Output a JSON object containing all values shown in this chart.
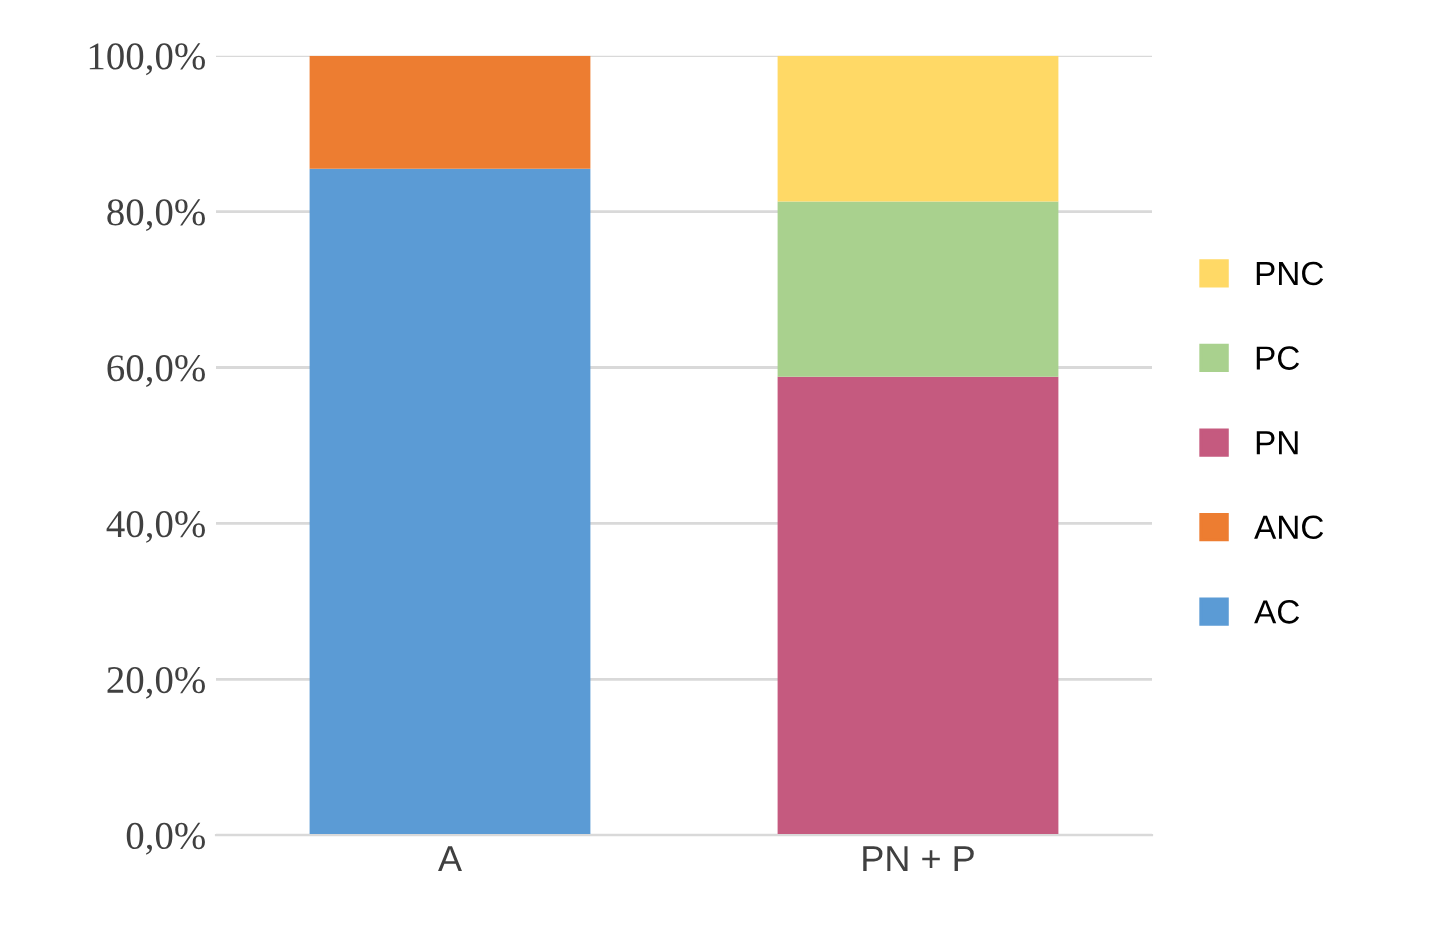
{
  "chart_data": {
    "type": "bar",
    "stacked": true,
    "categories": [
      "A",
      "PN + P"
    ],
    "series": [
      {
        "name": "AC",
        "color": "#5b9bd5",
        "values": [
          85.5,
          null
        ]
      },
      {
        "name": "ANC",
        "color": "#ed7d31",
        "values": [
          14.5,
          null
        ]
      },
      {
        "name": "PN",
        "color": "#c55a7f",
        "values": [
          null,
          58.8
        ]
      },
      {
        "name": "PC",
        "color": "#a9d18e",
        "values": [
          null,
          22.5
        ]
      },
      {
        "name": "PNC",
        "color": "#ffd966",
        "values": [
          null,
          18.7
        ]
      }
    ],
    "ylim": [
      0,
      100
    ],
    "yticks": [
      {
        "value": 0,
        "label": "0,0%"
      },
      {
        "value": 20,
        "label": "20,0%"
      },
      {
        "value": 40,
        "label": "40,0%"
      },
      {
        "value": 60,
        "label": "60,0%"
      },
      {
        "value": 80,
        "label": "80,0%"
      },
      {
        "value": 100,
        "label": "100,0%"
      }
    ],
    "grid": "y",
    "legend": "right"
  }
}
